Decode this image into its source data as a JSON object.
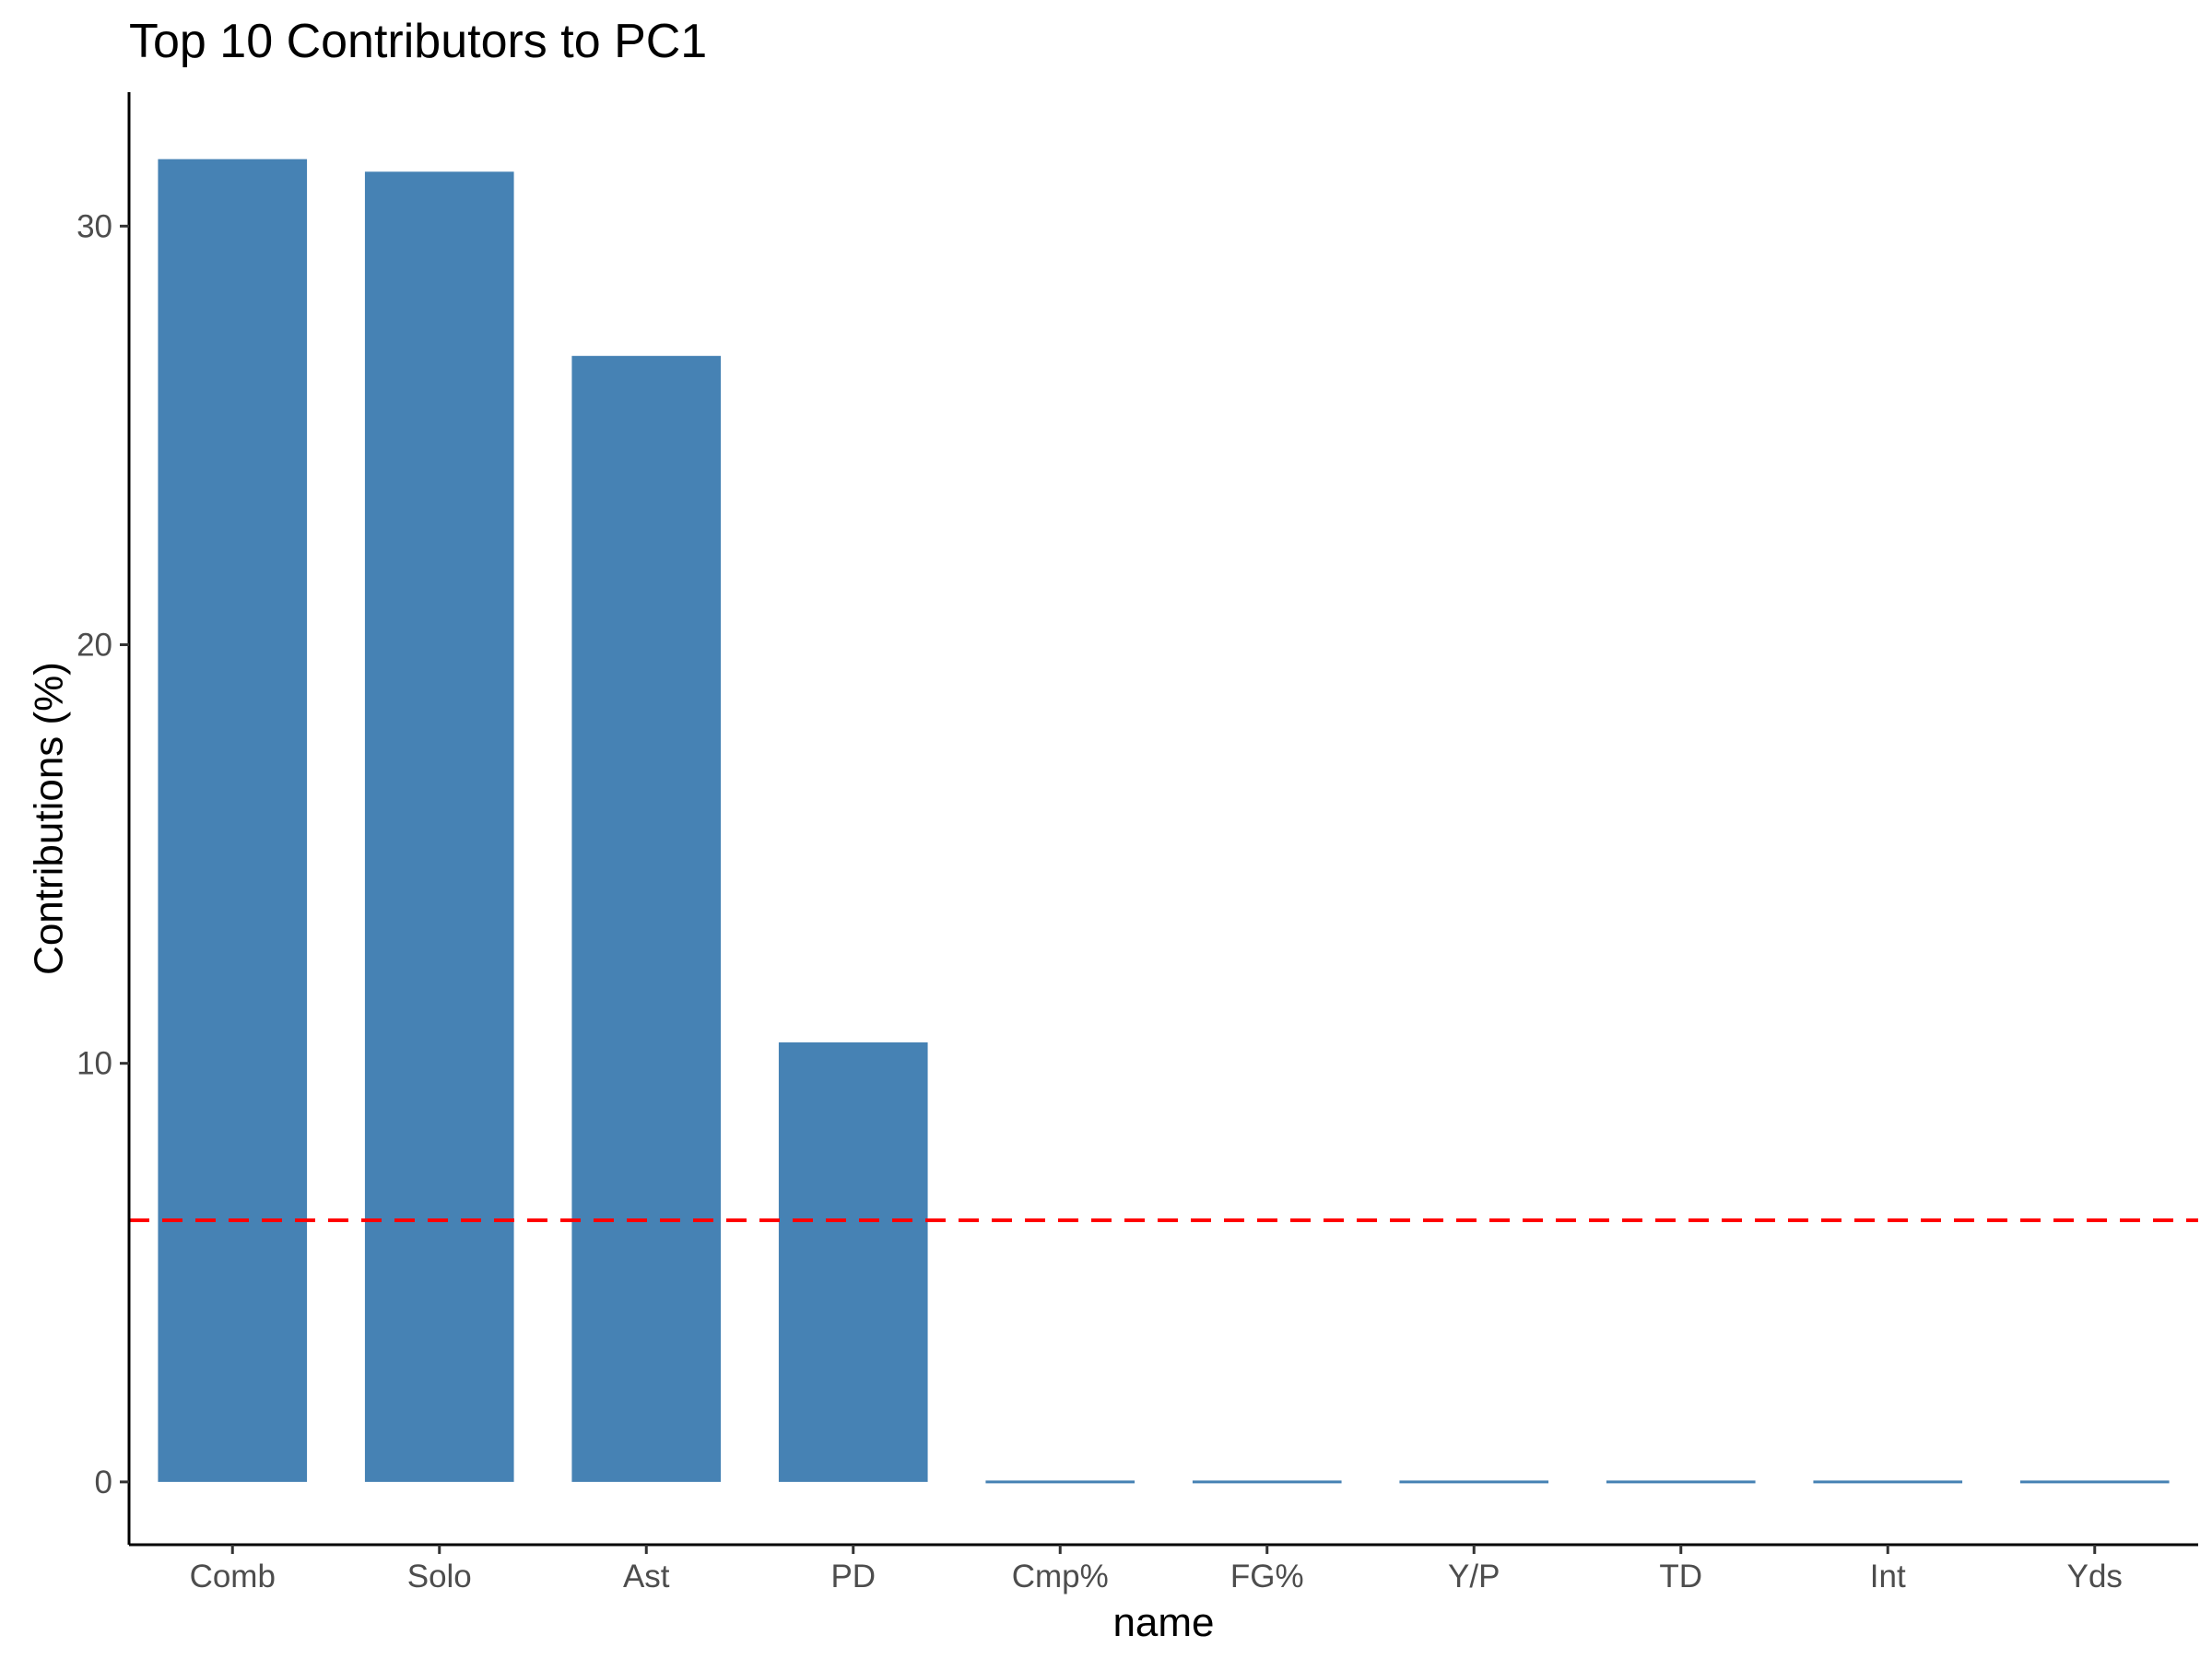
{
  "chart_data": {
    "type": "bar",
    "title": "Top 10 Contributors to PC1",
    "xlabel": "name",
    "ylabel": "Contributions (%)",
    "categories": [
      "Comb",
      "Solo",
      "Ast",
      "PD",
      "Cmp%",
      "FG%",
      "Y/P",
      "TD",
      "Int",
      "Yds"
    ],
    "values": [
      31.6,
      31.3,
      26.9,
      10.5,
      0,
      0,
      0,
      0,
      0,
      0
    ],
    "ylim": [
      -1.5,
      33.2
    ],
    "yticks": [
      0,
      10,
      20,
      30
    ],
    "reference_line": {
      "value": 6.25,
      "style": "dashed",
      "color": "#FF0000"
    },
    "bar_color": "#4682B4",
    "grid": false,
    "legend": "none"
  }
}
